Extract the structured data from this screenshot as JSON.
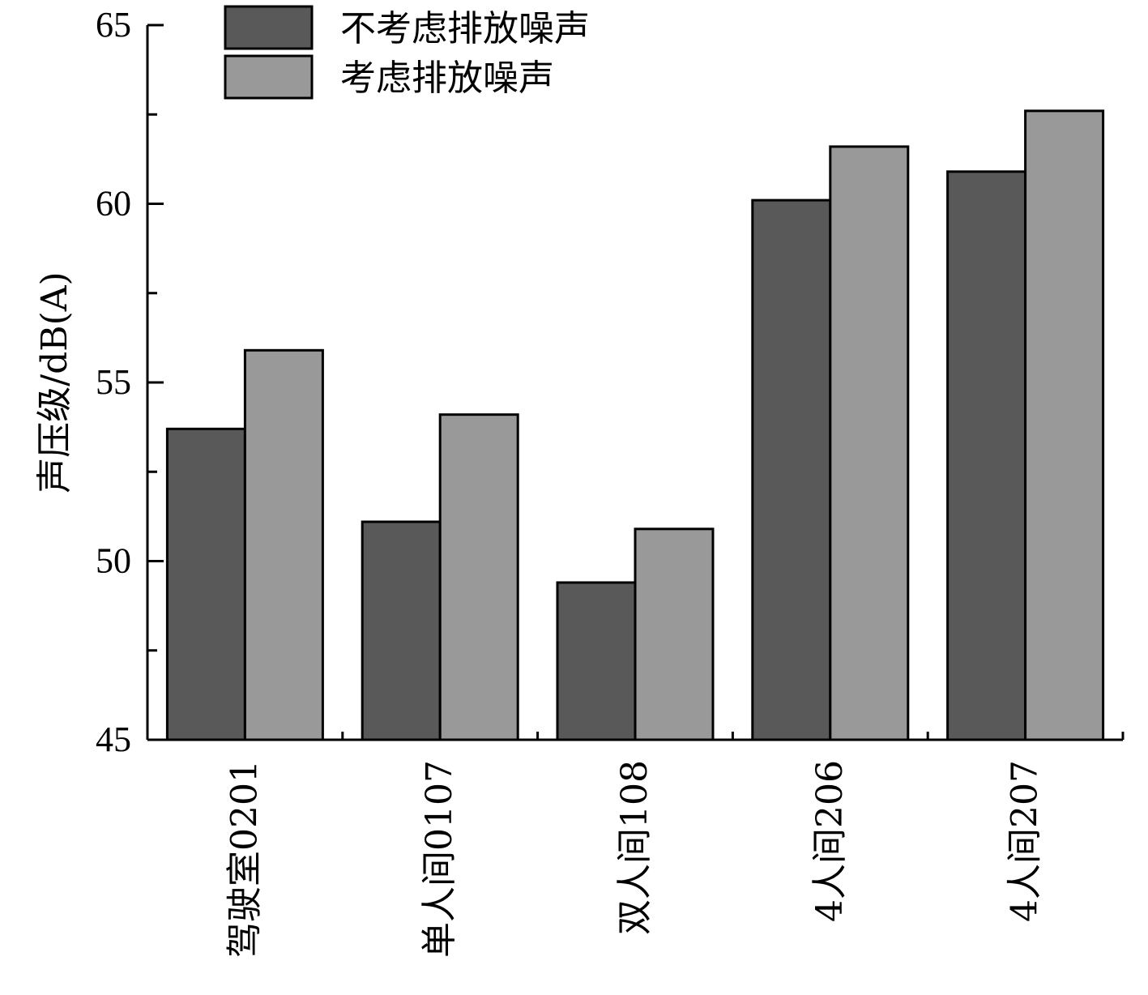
{
  "chart_data": {
    "type": "bar",
    "categories": [
      "驾驶室0201",
      "单人间0107",
      "双人间108",
      "4人间206",
      "4人间207"
    ],
    "series": [
      {
        "name": "不考虑排放噪声",
        "values": [
          53.7,
          51.1,
          49.4,
          60.1,
          60.9
        ],
        "color": "#595959"
      },
      {
        "name": "考虑排放噪声",
        "values": [
          55.9,
          54.1,
          50.9,
          61.6,
          62.6
        ],
        "color": "#999999"
      }
    ],
    "ylabel": "声压级/dB(A)",
    "xlabel": "",
    "ylim": [
      45,
      65
    ],
    "yticks": [
      45,
      50,
      55,
      60,
      65
    ],
    "legend_position": "top-left",
    "grid": false
  }
}
